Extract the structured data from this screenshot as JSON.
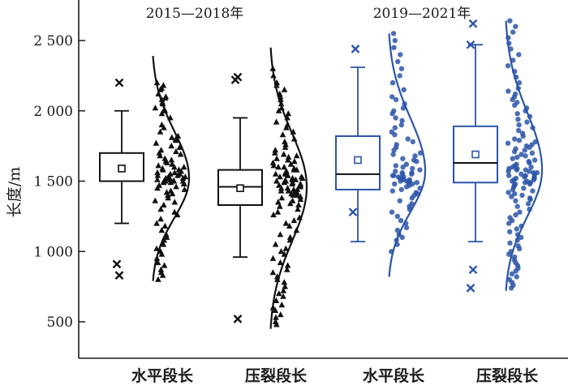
{
  "chart_data": {
    "type": "box",
    "ylabel": "长度/m",
    "ylim": [
      380,
      2700
    ],
    "yticks": [
      {
        "value": 500,
        "label": "500"
      },
      {
        "value": 1000,
        "label": "1 000"
      },
      {
        "value": 1500,
        "label": "1 500"
      },
      {
        "value": 2000,
        "label": "2 000"
      },
      {
        "value": 2500,
        "label": "2 500"
      }
    ],
    "groups": [
      {
        "label": "2015—2018年",
        "color": "#111111"
      },
      {
        "label": "2019—2021年",
        "color": "#2b55a8"
      }
    ],
    "series": [
      {
        "category": "水平段长",
        "group": 0,
        "point_marker": "triangle",
        "q1": 1500,
        "median": 1500,
        "q3": 1700,
        "mean": 1590,
        "whisker_low": 1200,
        "whisker_high": 2000,
        "outliers": [
          2200,
          910,
          830
        ],
        "curve_bottom": 790,
        "curve_top": 2390,
        "curve_peak": 1520,
        "points": [
          2200,
          2180,
          2160,
          2150,
          2120,
          2100,
          2090,
          2080,
          2060,
          2050,
          2020,
          2010,
          2000,
          1980,
          1950,
          1900,
          1880,
          1850,
          1820,
          1810,
          1800,
          1790,
          1770,
          1750,
          1740,
          1720,
          1710,
          1700,
          1690,
          1680,
          1660,
          1650,
          1640,
          1630,
          1620,
          1610,
          1600,
          1600,
          1590,
          1580,
          1580,
          1570,
          1560,
          1560,
          1550,
          1550,
          1540,
          1540,
          1530,
          1530,
          1520,
          1520,
          1520,
          1510,
          1510,
          1500,
          1500,
          1500,
          1500,
          1500,
          1490,
          1490,
          1480,
          1480,
          1470,
          1460,
          1450,
          1440,
          1430,
          1420,
          1410,
          1400,
          1380,
          1360,
          1350,
          1330,
          1300,
          1280,
          1260,
          1230,
          1200,
          1180,
          1150,
          1120,
          1100,
          1080,
          1050,
          1020,
          1000,
          980,
          950,
          920,
          900,
          870,
          850,
          830,
          800
        ]
      },
      {
        "category": "压裂段长",
        "group": 0,
        "point_marker": "triangle",
        "q1": 1330,
        "median": 1460,
        "q3": 1580,
        "mean": 1450,
        "whisker_low": 960,
        "whisker_high": 1950,
        "outliers": [
          2240,
          2220,
          520
        ],
        "curve_bottom": 450,
        "curve_top": 2450,
        "curve_peak": 1460,
        "points": [
          2300,
          2250,
          2200,
          2180,
          2150,
          2120,
          2100,
          2080,
          2050,
          2020,
          2000,
          1980,
          1950,
          1920,
          1900,
          1880,
          1850,
          1830,
          1800,
          1780,
          1760,
          1740,
          1720,
          1700,
          1690,
          1680,
          1670,
          1660,
          1650,
          1640,
          1630,
          1620,
          1610,
          1600,
          1600,
          1590,
          1580,
          1580,
          1570,
          1560,
          1560,
          1550,
          1550,
          1540,
          1540,
          1530,
          1530,
          1520,
          1520,
          1510,
          1510,
          1500,
          1500,
          1500,
          1490,
          1490,
          1480,
          1480,
          1470,
          1470,
          1460,
          1460,
          1450,
          1450,
          1440,
          1440,
          1430,
          1430,
          1420,
          1420,
          1410,
          1400,
          1400,
          1390,
          1380,
          1370,
          1360,
          1350,
          1340,
          1330,
          1320,
          1300,
          1280,
          1260,
          1240,
          1220,
          1200,
          1180,
          1150,
          1120,
          1100,
          1080,
          1050,
          1020,
          1000,
          980,
          950,
          920,
          900,
          870,
          850,
          820,
          800,
          780,
          750,
          720,
          700,
          680,
          650,
          620,
          600,
          580,
          550,
          530,
          500,
          480
        ]
      },
      {
        "category": "水平段长",
        "group": 1,
        "point_marker": "circle",
        "q1": 1440,
        "median": 1550,
        "q3": 1820,
        "mean": 1650,
        "whisker_low": 1070,
        "whisker_high": 2310,
        "outliers": [
          2440,
          1280
        ],
        "curve_bottom": 820,
        "curve_top": 2550,
        "curve_peak": 1570,
        "points": [
          2550,
          2500,
          2450,
          2400,
          2350,
          2300,
          2250,
          2200,
          2150,
          2100,
          2080,
          2050,
          2020,
          2000,
          1980,
          1950,
          1930,
          1900,
          1880,
          1850,
          1830,
          1800,
          1780,
          1760,
          1740,
          1720,
          1700,
          1690,
          1680,
          1660,
          1650,
          1640,
          1620,
          1610,
          1600,
          1590,
          1580,
          1570,
          1560,
          1560,
          1550,
          1550,
          1540,
          1540,
          1530,
          1530,
          1520,
          1520,
          1510,
          1510,
          1500,
          1500,
          1500,
          1490,
          1490,
          1480,
          1480,
          1470,
          1460,
          1450,
          1440,
          1430,
          1420,
          1410,
          1400,
          1380,
          1360,
          1340,
          1320,
          1300,
          1280,
          1250,
          1220,
          1200,
          1170,
          1150,
          1120,
          1100,
          1080,
          1050,
          1000
        ]
      },
      {
        "category": "压裂段长",
        "group": 1,
        "point_marker": "circle",
        "q1": 1490,
        "median": 1630,
        "q3": 1890,
        "mean": 1690,
        "whisker_low": 1070,
        "whisker_high": 2470,
        "outliers": [
          2620,
          2470,
          870,
          740
        ],
        "curve_bottom": 720,
        "curve_top": 2640,
        "curve_peak": 1580,
        "points": [
          2640,
          2600,
          2560,
          2520,
          2480,
          2440,
          2400,
          2360,
          2320,
          2280,
          2240,
          2200,
          2160,
          2140,
          2120,
          2100,
          2080,
          2060,
          2040,
          2020,
          2000,
          1980,
          1960,
          1940,
          1920,
          1900,
          1880,
          1860,
          1840,
          1820,
          1800,
          1790,
          1780,
          1770,
          1760,
          1750,
          1740,
          1730,
          1720,
          1710,
          1700,
          1690,
          1680,
          1670,
          1660,
          1650,
          1640,
          1630,
          1620,
          1610,
          1600,
          1600,
          1590,
          1590,
          1580,
          1580,
          1570,
          1570,
          1560,
          1560,
          1550,
          1550,
          1540,
          1540,
          1530,
          1530,
          1520,
          1520,
          1510,
          1510,
          1500,
          1500,
          1490,
          1490,
          1480,
          1480,
          1470,
          1460,
          1450,
          1440,
          1430,
          1420,
          1410,
          1400,
          1390,
          1380,
          1370,
          1360,
          1340,
          1320,
          1300,
          1280,
          1260,
          1240,
          1220,
          1200,
          1180,
          1160,
          1140,
          1120,
          1100,
          1080,
          1060,
          1040,
          1020,
          1000,
          980,
          960,
          940,
          920,
          900,
          880,
          860,
          840,
          820,
          800,
          780,
          760,
          740
        ]
      }
    ]
  }
}
